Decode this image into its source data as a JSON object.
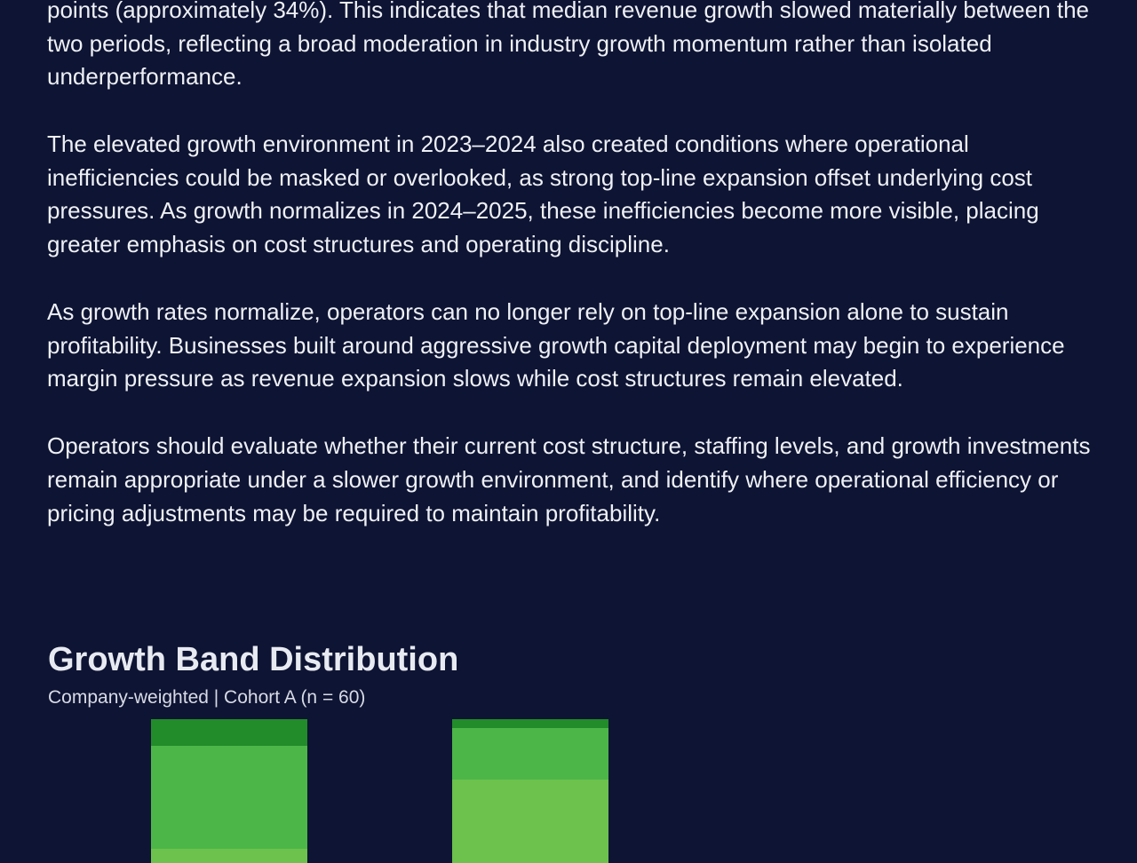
{
  "paragraphs": [
    "points (approximately 34%). This indicates that median revenue growth slowed materially between the two periods, reflecting a broad moderation in industry growth momentum rather than isolated underperformance.",
    "The elevated growth environment in 2023–2024 also created conditions where operational inefficiencies could be masked or overlooked, as strong top-line expansion offset underlying cost pressures. As growth normalizes in 2024–2025, these inefficiencies become more visible, placing greater emphasis on cost structures and operating discipline.",
    "As growth rates normalize, operators can no longer rely on top-line expansion alone to sustain profitability. Businesses built around aggressive growth capital deployment may begin to experience margin pressure as revenue expansion slows while cost structures remain elevated.",
    "Operators should evaluate whether their current cost structure, staffing levels, and growth investments remain appropriate under a slower growth environment, and identify where operational efficiency or pricing adjustments may be required to maintain profitability."
  ],
  "section": {
    "title": "Growth Band Distribution",
    "subtitle": "Company-weighted | Cohort A (n = 60)"
  }
}
